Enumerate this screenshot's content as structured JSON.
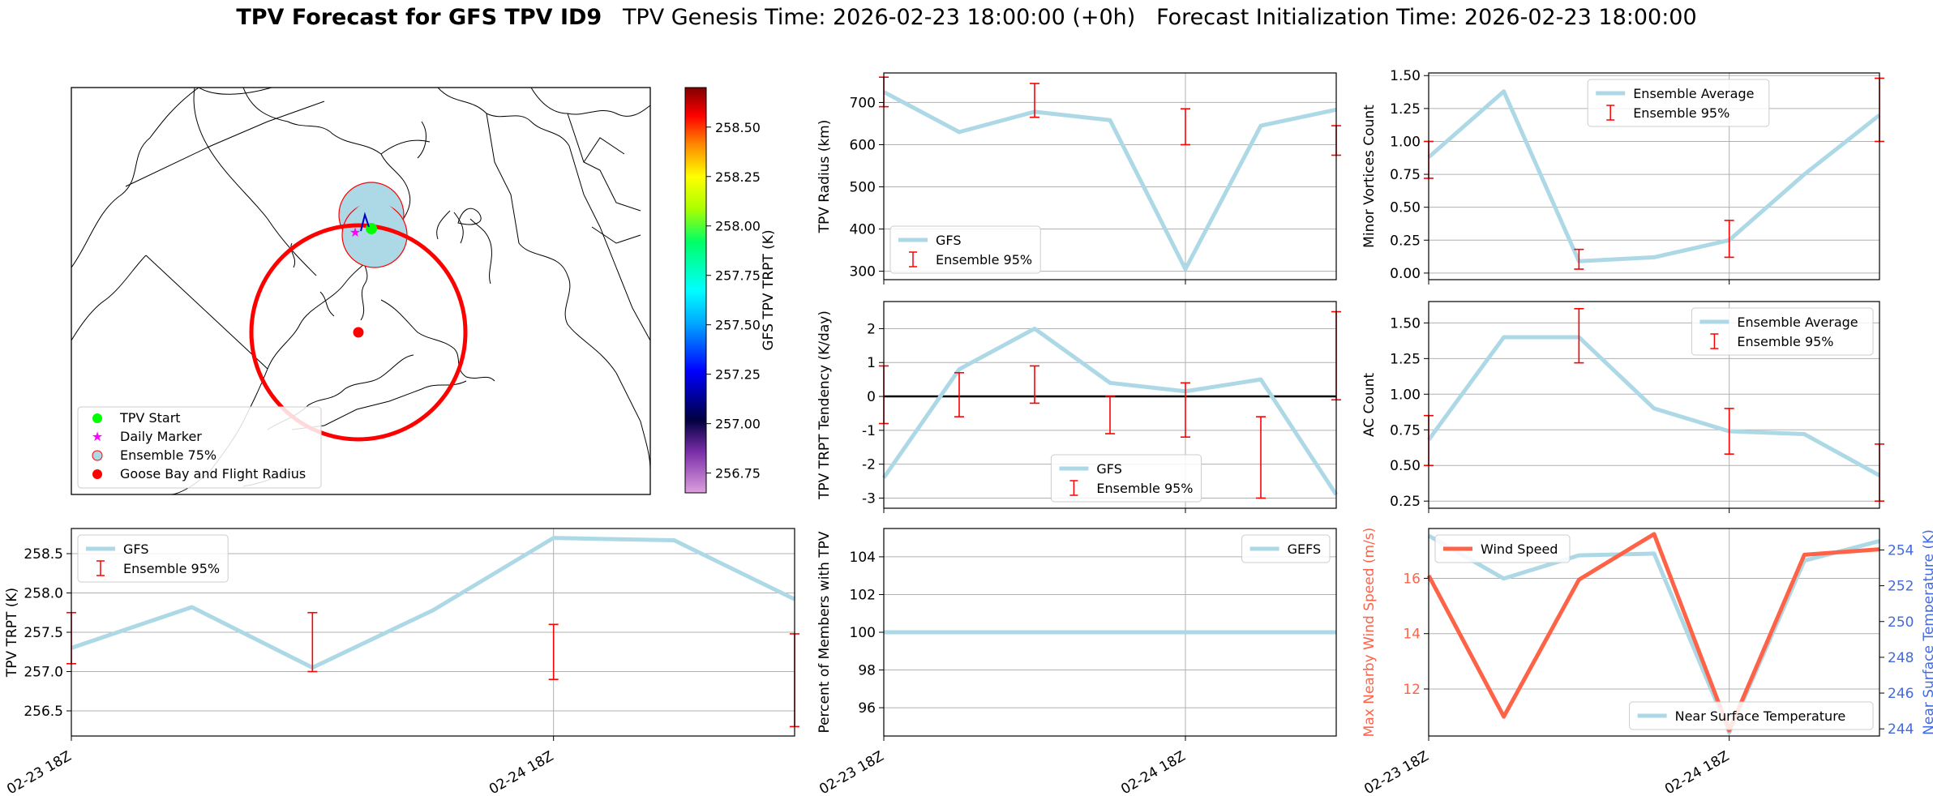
{
  "title": {
    "bold": "TPV Forecast for GFS TPV ID9",
    "genesis": "TPV Genesis Time: 2026-02-23 18:00:00 (+0h)",
    "init": "Forecast Initialization Time: 2026-02-23 18:00:00"
  },
  "colors": {
    "line": "#add8e6",
    "error": "#ff0000",
    "wind": "#ff6347",
    "temp_axis": "#4169e1",
    "grid": "#b0b0b0"
  },
  "map": {
    "legend": [
      "TPV Start",
      "Daily Marker",
      "Ensemble 75%",
      "Goose Bay and Flight Radius"
    ],
    "colorbar_label": "GFS TPV TRPT (K)",
    "colorbar_ticks": [
      256.75,
      257.0,
      257.25,
      257.5,
      257.75,
      258.0,
      258.25,
      258.5
    ],
    "colorbar_range": [
      256.65,
      258.7
    ]
  },
  "chart_data": [
    {
      "id": "radius",
      "type": "line",
      "x": [
        0,
        1,
        2,
        3,
        4,
        5,
        6
      ],
      "ylabel": "TPV Radius (km)",
      "ylim": [
        280,
        770
      ],
      "yticks": [
        300,
        400,
        500,
        600,
        700
      ],
      "line": [
        725,
        630,
        678,
        658,
        305,
        645,
        683
      ],
      "errorbars": [
        {
          "x": 0,
          "lo": 690,
          "hi": 760
        },
        {
          "x": 2,
          "lo": 665,
          "hi": 745
        },
        {
          "x": 4,
          "lo": 600,
          "hi": 685
        },
        {
          "x": 6,
          "lo": 575,
          "hi": 645
        }
      ],
      "legend": [
        "GFS",
        "Ensemble 95%"
      ],
      "legend_pos": "lower-left"
    },
    {
      "id": "minor",
      "type": "line",
      "x": [
        0,
        1,
        2,
        3,
        4,
        5,
        6
      ],
      "ylabel": "Minor Vortices Count",
      "ylim": [
        -0.05,
        1.52
      ],
      "yticks": [
        0.0,
        0.25,
        0.5,
        0.75,
        1.0,
        1.25,
        1.5
      ],
      "ytick_labels": [
        "0.00",
        "0.25",
        "0.50",
        "0.75",
        "1.00",
        "1.25",
        "1.50"
      ],
      "line": [
        0.88,
        1.38,
        0.09,
        0.12,
        0.25,
        0.75,
        1.2
      ],
      "errorbars": [
        {
          "x": 0,
          "lo": 0.72,
          "hi": 1.0
        },
        {
          "x": 2,
          "lo": 0.03,
          "hi": 0.18
        },
        {
          "x": 4,
          "lo": 0.12,
          "hi": 0.4
        },
        {
          "x": 6,
          "lo": 1.0,
          "hi": 1.48
        }
      ],
      "legend": [
        "Ensemble Average",
        "Ensemble 95%"
      ],
      "legend_pos": "upper-center"
    },
    {
      "id": "tendency",
      "type": "line",
      "x": [
        0,
        1,
        2,
        3,
        4,
        5,
        6
      ],
      "ylabel": "TPV TRPT Tendency (K/day)",
      "ylim": [
        -3.3,
        2.8
      ],
      "yticks": [
        -3,
        -2,
        -1,
        0,
        1,
        2
      ],
      "line": [
        -2.4,
        0.8,
        2.0,
        0.4,
        0.15,
        0.5,
        -2.9
      ],
      "hline": 0,
      "errorbars": [
        {
          "x": 0,
          "lo": -0.8,
          "hi": 0.9
        },
        {
          "x": 1,
          "lo": -0.6,
          "hi": 0.7
        },
        {
          "x": 2,
          "lo": -0.2,
          "hi": 0.9
        },
        {
          "x": 3,
          "lo": -1.1,
          "hi": 0.0
        },
        {
          "x": 4,
          "lo": -1.2,
          "hi": 0.4
        },
        {
          "x": 5,
          "lo": -3.0,
          "hi": -0.6
        },
        {
          "x": 6,
          "lo": -0.1,
          "hi": 2.5
        }
      ],
      "legend": [
        "GFS",
        "Ensemble 95%"
      ],
      "legend_pos": "lower-center"
    },
    {
      "id": "ac",
      "type": "line",
      "x": [
        0,
        1,
        2,
        3,
        4,
        5,
        6
      ],
      "ylabel": "AC Count",
      "ylim": [
        0.2,
        1.65
      ],
      "yticks": [
        0.25,
        0.5,
        0.75,
        1.0,
        1.25,
        1.5
      ],
      "ytick_labels": [
        "0.25",
        "0.50",
        "0.75",
        "1.00",
        "1.25",
        "1.50"
      ],
      "line": [
        0.68,
        1.4,
        1.4,
        0.9,
        0.74,
        0.72,
        0.43
      ],
      "errorbars": [
        {
          "x": 0,
          "lo": 0.5,
          "hi": 0.85
        },
        {
          "x": 2,
          "lo": 1.22,
          "hi": 1.6
        },
        {
          "x": 4,
          "lo": 0.58,
          "hi": 0.9
        },
        {
          "x": 6,
          "lo": 0.25,
          "hi": 0.65
        }
      ],
      "legend": [
        "Ensemble Average",
        "Ensemble 95%"
      ],
      "legend_pos": "upper-right"
    },
    {
      "id": "trpt",
      "type": "line",
      "x": [
        0,
        1,
        2,
        3,
        4,
        5,
        6
      ],
      "ylabel": "TPV TRPT (K)",
      "ylim": [
        256.18,
        258.82
      ],
      "yticks": [
        256.5,
        257.0,
        257.5,
        258.0,
        258.5
      ],
      "ytick_labels": [
        "256.5",
        "257.0",
        "257.5",
        "258.0",
        "258.5"
      ],
      "line": [
        257.3,
        257.82,
        257.05,
        257.78,
        258.7,
        258.67,
        257.92
      ],
      "errorbars": [
        {
          "x": 0,
          "lo": 257.1,
          "hi": 257.75
        },
        {
          "x": 2,
          "lo": 257.0,
          "hi": 257.75
        },
        {
          "x": 4,
          "lo": 256.9,
          "hi": 257.6
        },
        {
          "x": 6,
          "lo": 256.3,
          "hi": 257.48
        }
      ],
      "legend": [
        "GFS",
        "Ensemble 95%"
      ],
      "legend_pos": "upper-left",
      "xticks": [
        {
          "x": 0,
          "label": "02-23 18Z"
        },
        {
          "x": 4,
          "label": "02-24 18Z"
        }
      ]
    },
    {
      "id": "percent",
      "type": "line",
      "x": [
        0,
        1,
        2,
        3,
        4,
        5,
        6
      ],
      "ylabel": "Percent of Members with TPV",
      "ylim": [
        94.5,
        105.5
      ],
      "yticks": [
        96,
        98,
        100,
        102,
        104
      ],
      "line": [
        100,
        100,
        100,
        100,
        100,
        100,
        100
      ],
      "legend": [
        "GEFS"
      ],
      "legend_pos": "upper-right",
      "xticks": [
        {
          "x": 0,
          "label": "02-23 18Z"
        },
        {
          "x": 4,
          "label": "02-24 18Z"
        }
      ]
    },
    {
      "id": "wind",
      "type": "line",
      "x": [
        0,
        1,
        2,
        3,
        4,
        5,
        6
      ],
      "ylabel": "Max Nearby Wind Speed (m/s)",
      "ylim": [
        10.3,
        17.8
      ],
      "yticks": [
        12,
        14,
        16
      ],
      "line": [
        16.1,
        11.0,
        15.95,
        17.6,
        10.5,
        16.85,
        17.05
      ],
      "legend": [
        "Wind Speed"
      ],
      "legend_pos": "upper-left",
      "y2label": "Near Surface Temperature (K)",
      "y2lim": [
        243.6,
        255.2
      ],
      "y2ticks": [
        244,
        246,
        248,
        250,
        252,
        254
      ],
      "line2": [
        254.8,
        252.4,
        253.7,
        253.8,
        243.8,
        253.4,
        254.5
      ],
      "legend2": [
        "Near Surface Temperature"
      ],
      "legend2_pos": "lower-right",
      "xticks": [
        {
          "x": 0,
          "label": "02-23 18Z"
        },
        {
          "x": 4,
          "label": "02-24 18Z"
        }
      ]
    }
  ]
}
